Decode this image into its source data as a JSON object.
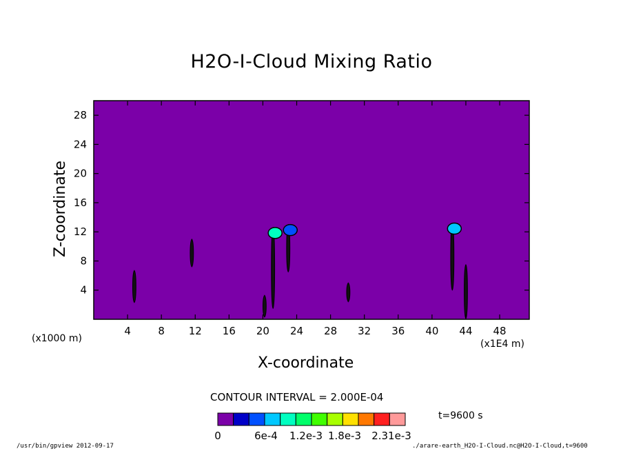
{
  "chart_data": {
    "type": "heatmap",
    "title": "H2O-I-Cloud Mixing Ratio",
    "xlabel": "X-coordinate",
    "ylabel": "Z-coordinate",
    "x_scale_note": "(x1E4 m)",
    "y_scale_note": "(x1000 m)",
    "xlim": [
      0,
      51.5
    ],
    "ylim": [
      0,
      30
    ],
    "x_ticks": [
      4,
      8,
      12,
      16,
      20,
      24,
      28,
      32,
      36,
      40,
      44,
      48
    ],
    "y_ticks": [
      4,
      8,
      12,
      16,
      20,
      24,
      28
    ],
    "background_value": 0,
    "contour_interval_label": "CONTOUR INTERVAL = 2.000E-04",
    "time_label": "t=9600 s",
    "colorbar": {
      "colors": [
        "#7b00a8",
        "#0000c8",
        "#0050ff",
        "#00c8ff",
        "#00ffc0",
        "#00ff6a",
        "#40ff00",
        "#a8ff00",
        "#ffe000",
        "#ff7800",
        "#ff2020",
        "#ff9a9a"
      ],
      "tick_labels": [
        "0",
        "6e-4",
        "1.2e-3",
        "1.8e-3",
        "2.31e-3"
      ]
    },
    "cloud_features": [
      {
        "x": 4.8,
        "z_bottom": 2.3,
        "z_top": 6.7,
        "max_color": "#7b00a8"
      },
      {
        "x": 11.6,
        "z_bottom": 7.2,
        "z_top": 11.0,
        "max_color": "#7b00a8"
      },
      {
        "x": 20.2,
        "z_bottom": 0.3,
        "z_top": 3.3,
        "max_color": "#7b00a8"
      },
      {
        "x": 21.2,
        "z_bottom": 1.5,
        "z_top": 12.6,
        "max_color": "#00ffc0"
      },
      {
        "x": 23.0,
        "z_bottom": 6.5,
        "z_top": 13.0,
        "max_color": "#0050ff"
      },
      {
        "x": 30.1,
        "z_bottom": 2.4,
        "z_top": 5.0,
        "max_color": "#7b00a8"
      },
      {
        "x": 42.4,
        "z_bottom": 4.0,
        "z_top": 13.2,
        "max_color": "#00c8ff"
      },
      {
        "x": 44.0,
        "z_bottom": 0.1,
        "z_top": 7.5,
        "max_color": "#7b00a8"
      }
    ]
  },
  "footer": {
    "left": "/usr/bin/gpview  2012-09-17",
    "right": "./arare-earth_H2O-I-Cloud.nc@H2O-I-Cloud,t=9600"
  }
}
